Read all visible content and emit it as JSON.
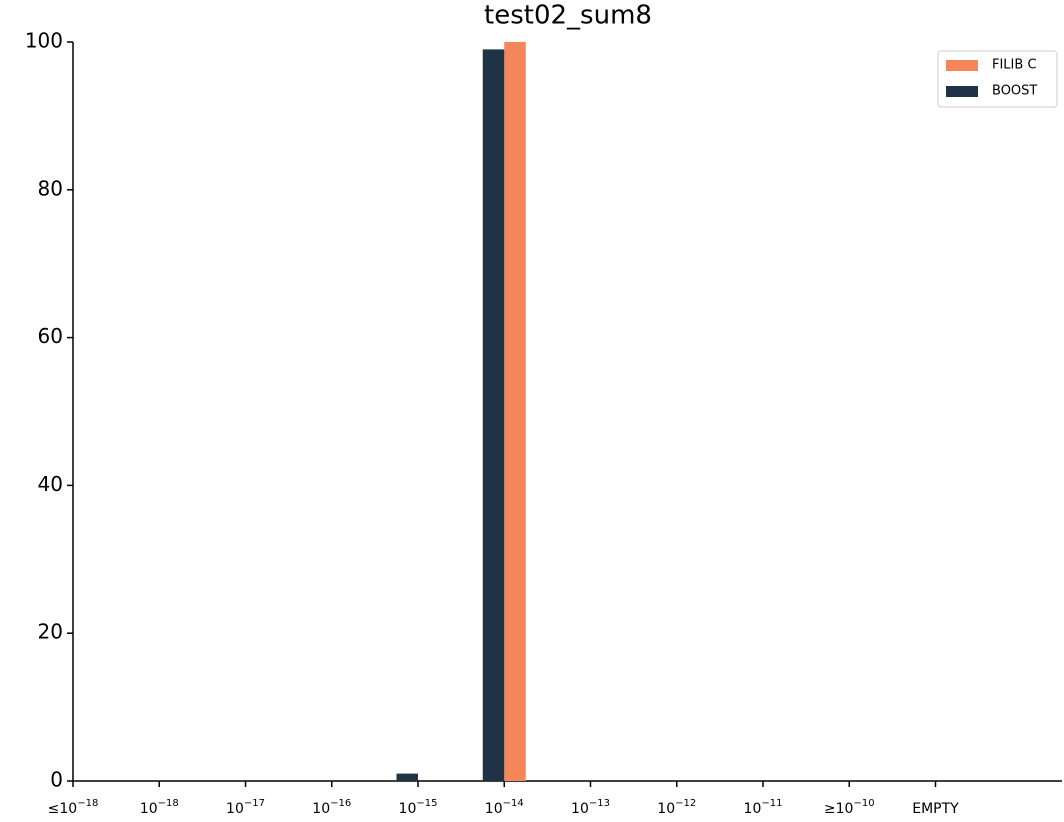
{
  "chart_data": {
    "type": "bar",
    "title": "test02_sum8",
    "categories": [
      {
        "text": "≤10",
        "sup": "−18"
      },
      {
        "text": "10",
        "sup": "−18"
      },
      {
        "text": "10",
        "sup": "−17"
      },
      {
        "text": "10",
        "sup": "−16"
      },
      {
        "text": "10",
        "sup": "−15"
      },
      {
        "text": "10",
        "sup": "−14"
      },
      {
        "text": "10",
        "sup": "−13"
      },
      {
        "text": "10",
        "sup": "−12"
      },
      {
        "text": "10",
        "sup": "−11"
      },
      {
        "text": "≥10",
        "sup": "−10"
      },
      {
        "text": "EMPTY"
      }
    ],
    "series": [
      {
        "name": "FILIB C",
        "color": "#f5865a",
        "values": [
          0,
          0,
          0,
          0,
          0,
          100,
          0,
          0,
          0,
          0,
          0
        ]
      },
      {
        "name": "BOOST",
        "color": "#1f3246",
        "values": [
          0,
          0,
          0,
          0,
          1,
          99,
          0,
          0,
          0,
          0,
          0
        ]
      }
    ],
    "ylim": [
      0,
      100
    ],
    "yticks": [
      0,
      20,
      40,
      60,
      80,
      100
    ],
    "grid": false,
    "legend": "upper right"
  }
}
